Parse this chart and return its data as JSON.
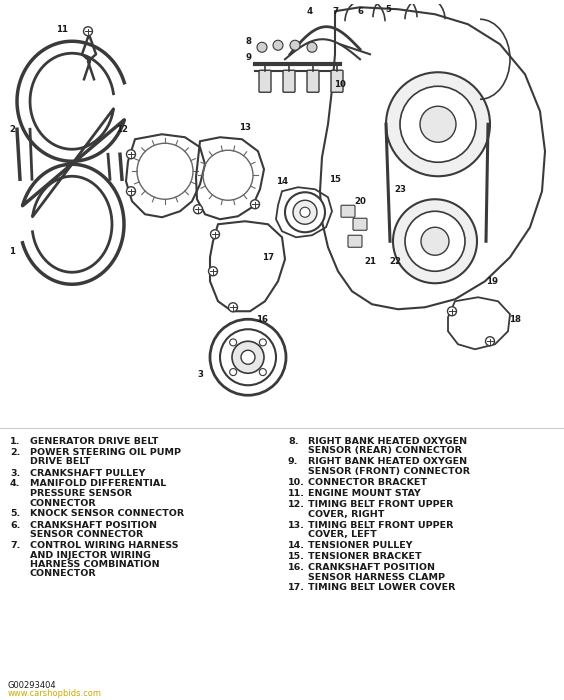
{
  "bg_color": "#ffffff",
  "text_color": "#1a1a1a",
  "gray": "#3a3a3a",
  "lgray": "#666666",
  "legend_items_left": [
    {
      "num": "1.",
      "lines": [
        "GENERATOR DRIVE BELT"
      ]
    },
    {
      "num": "2.",
      "lines": [
        "POWER STEERING OIL PUMP",
        "DRIVE BELT"
      ]
    },
    {
      "num": "3.",
      "lines": [
        "CRANKSHAFT PULLEY"
      ]
    },
    {
      "num": "4.",
      "lines": [
        "MANIFOLD DIFFERENTIAL",
        "PRESSURE SENSOR",
        "CONNECTOR"
      ]
    },
    {
      "num": "5.",
      "lines": [
        "KNOCK SENSOR CONNECTOR"
      ]
    },
    {
      "num": "6.",
      "lines": [
        "CRANKSHAFT POSITION",
        "SENSOR CONNECTOR"
      ]
    },
    {
      "num": "7.",
      "lines": [
        "CONTROL WIRING HARNESS",
        "AND INJECTOR WIRING",
        "HARNESS COMBINATION",
        "CONNECTOR"
      ]
    }
  ],
  "legend_items_right": [
    {
      "num": "8.",
      "lines": [
        "RIGHT BANK HEATED OXYGEN",
        "SENSOR (REAR) CONNECTOR"
      ]
    },
    {
      "num": "9.",
      "lines": [
        "RIGHT BANK HEATED OXYGEN",
        "SENSOR (FRONT) CONNECTOR"
      ]
    },
    {
      "num": "10.",
      "lines": [
        "CONNECTOR BRACKET"
      ]
    },
    {
      "num": "11.",
      "lines": [
        "ENGINE MOUNT STAY"
      ]
    },
    {
      "num": "12.",
      "lines": [
        "TIMING BELT FRONT UPPER",
        "COVER, RIGHT"
      ]
    },
    {
      "num": "13.",
      "lines": [
        "TIMING BELT FRONT UPPER",
        "COVER, LEFT"
      ]
    },
    {
      "num": "14.",
      "lines": [
        "TENSIONER PULLEY"
      ]
    },
    {
      "num": "15.",
      "lines": [
        "TENSIONER BRACKET"
      ]
    },
    {
      "num": "16.",
      "lines": [
        "CRANKSHAFT POSITION",
        "SENSOR HARNESS CLAMP"
      ]
    },
    {
      "num": "17.",
      "lines": [
        "TIMING BELT LOWER COVER"
      ]
    }
  ],
  "footer_code": "G00293404",
  "footer_url": "www.carshopbids.com",
  "footer_url_color": "#ccaa00"
}
